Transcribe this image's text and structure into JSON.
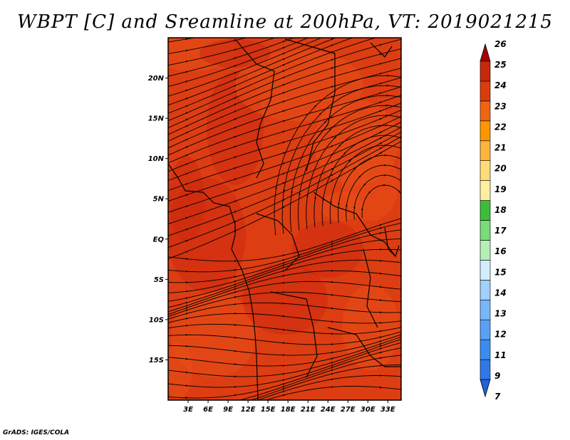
{
  "title": "WBPT [C] and Sreamline at 200hPa, VT: 2019021215",
  "credit": "GrADS: IGES/COLA",
  "map": {
    "lon_range": [
      0,
      35
    ],
    "lat_range": [
      -20,
      25
    ],
    "lat_ticks": [
      {
        "value": 20,
        "label": "20N"
      },
      {
        "value": 15,
        "label": "15N"
      },
      {
        "value": 10,
        "label": "10N"
      },
      {
        "value": 5,
        "label": "5N"
      },
      {
        "value": 0,
        "label": "EQ"
      },
      {
        "value": -5,
        "label": "5S"
      },
      {
        "value": -10,
        "label": "10S"
      },
      {
        "value": -15,
        "label": "15S"
      }
    ],
    "lon_ticks": [
      {
        "value": 3,
        "label": "3E"
      },
      {
        "value": 6,
        "label": "6E"
      },
      {
        "value": 9,
        "label": "9E"
      },
      {
        "value": 12,
        "label": "12E"
      },
      {
        "value": 15,
        "label": "15E"
      },
      {
        "value": 18,
        "label": "18E"
      },
      {
        "value": 21,
        "label": "21E"
      },
      {
        "value": 24,
        "label": "24E"
      },
      {
        "value": 27,
        "label": "27E"
      },
      {
        "value": 30,
        "label": "30E"
      },
      {
        "value": 33,
        "label": "33E"
      }
    ],
    "field_colors": {
      "base": "#dd3d12",
      "warm": "#cc2a0e",
      "cool": "#e84f18"
    }
  },
  "colorbar": {
    "labels": [
      "7",
      "9",
      "11",
      "12",
      "13",
      "14",
      "15",
      "16",
      "17",
      "18",
      "19",
      "20",
      "21",
      "22",
      "23",
      "24",
      "25",
      "26"
    ],
    "colors": [
      "#1f64d8",
      "#2f78e6",
      "#3c8cf0",
      "#5aa0f5",
      "#78b8fa",
      "#a0d0fc",
      "#d2eefe",
      "#b4f0b4",
      "#78dc78",
      "#3cbe3c",
      "#fff0a0",
      "#ffdc78",
      "#ffb43c",
      "#ff9600",
      "#f06414",
      "#dc3c0a",
      "#c82808",
      "#a80000"
    ]
  }
}
